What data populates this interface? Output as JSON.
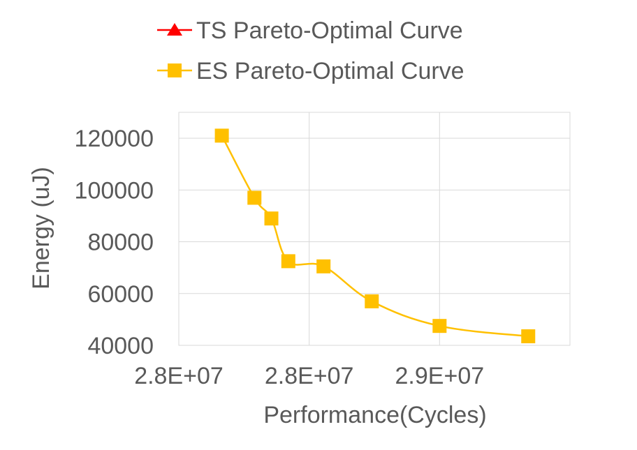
{
  "chart_data": {
    "type": "line",
    "xlabel": "Performance(Cycles)",
    "ylabel": "Energy (uJ)",
    "xlim": [
      27500000,
      29000000
    ],
    "ylim": [
      40000,
      130000
    ],
    "x_ticks": [
      {
        "value": 27500000,
        "label": "2.8E+07"
      },
      {
        "value": 28000000,
        "label": "2.8E+07"
      },
      {
        "value": 28500000,
        "label": "2.9E+07"
      }
    ],
    "y_ticks": [
      {
        "value": 40000,
        "label": "40000"
      },
      {
        "value": 60000,
        "label": "60000"
      },
      {
        "value": 80000,
        "label": "80000"
      },
      {
        "value": 100000,
        "label": "100000"
      },
      {
        "value": 120000,
        "label": "120000"
      }
    ],
    "grid": true,
    "legend_position": "top",
    "series": [
      {
        "name": "TS Pareto-Optimal Curve",
        "color": "#ff0000",
        "marker": "triangle",
        "x": [],
        "y": []
      },
      {
        "name": "ES Pareto-Optimal Curve",
        "color": "#ffc000",
        "marker": "square",
        "x": [
          27665000,
          27790000,
          27855000,
          27920000,
          28055000,
          28240000,
          28500000,
          28840000
        ],
        "y": [
          121000,
          97000,
          89000,
          72500,
          70500,
          57000,
          47500,
          43500
        ]
      }
    ]
  }
}
